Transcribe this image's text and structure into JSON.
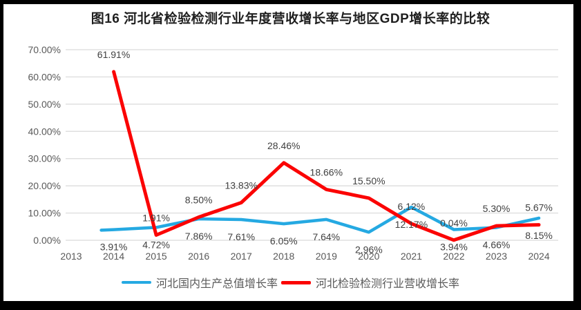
{
  "title": "图16 河北省检验检测行业年度营收增长率与地区GDP增长率的比较",
  "chart_data": {
    "type": "line",
    "title": "图16 河北省检验检测行业年度营收增长率与地区GDP增长率的比较",
    "categories": [
      "2013",
      "2014",
      "2015",
      "2016",
      "2017",
      "2018",
      "2019",
      "2020",
      "2021",
      "2022",
      "2023",
      "2024"
    ],
    "y_axis": {
      "min": 0,
      "max": 70,
      "step": 10,
      "tick_labels": [
        "0.00%",
        "10.00%",
        "20.00%",
        "30.00%",
        "40.00%",
        "50.00%",
        "60.00%",
        "70.00%"
      ]
    },
    "grid": true,
    "grid_color": "#D9D9D9",
    "axis_label_color": "#595959",
    "data_label_color": "#404040",
    "legend_position": "bottom",
    "series": [
      {
        "name": "河北国内生产总值增长率",
        "color": "#25A9E2",
        "label_position": "below",
        "values": [
          null,
          3.91,
          4.72,
          7.86,
          7.61,
          6.05,
          7.64,
          2.96,
          12.17,
          3.94,
          4.66,
          8.15
        ],
        "point_labels": [
          null,
          "3.91%",
          "4.72%",
          "7.86%",
          "7.61%",
          "6.05%",
          "7.64%",
          "2.96%",
          "12.17%",
          "3.94%",
          "4.66%",
          "8.15%"
        ]
      },
      {
        "name": "河北检验检测行业营收增长率",
        "color": "#FB0404",
        "label_position": "above",
        "values": [
          null,
          61.91,
          1.91,
          8.5,
          13.83,
          28.46,
          18.66,
          15.5,
          6.12,
          0.04,
          5.3,
          5.67
        ],
        "point_labels": [
          null,
          "61.91%",
          "1.91%",
          "8.50%",
          "13.83%",
          "28.46%",
          "18.66%",
          "15.50%",
          "6.12%",
          "0.04%",
          "5.30%",
          "5.67%"
        ]
      }
    ]
  }
}
